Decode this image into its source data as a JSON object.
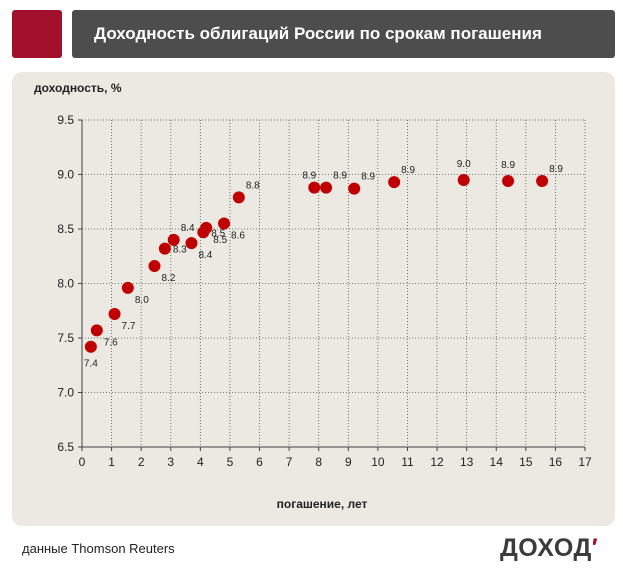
{
  "header": {
    "title": "Доходность облигаций России по срокам погашения"
  },
  "footer": {
    "source": "данные Thomson Reuters",
    "logo_text": "ДОХОД",
    "logo_accent": "′"
  },
  "colors": {
    "brand_red": "#a3102b",
    "header_bg": "#4d4d4d",
    "panel_bg": "#ebe9e1",
    "marker": "#c00000",
    "grid": "#555555"
  },
  "chart_data": {
    "type": "scatter",
    "ylabel": "доходность, %",
    "xlabel": "погашение, лет",
    "xlim": [
      0,
      17
    ],
    "ylim": [
      6.5,
      9.5
    ],
    "x_ticks": [
      0,
      1,
      2,
      3,
      4,
      5,
      6,
      7,
      8,
      9,
      10,
      11,
      12,
      13,
      14,
      15,
      16,
      17
    ],
    "y_ticks": [
      "6.5",
      "7.0",
      "7.5",
      "8.0",
      "8.5",
      "9.0",
      "9.5"
    ],
    "grid": "dotted",
    "points": [
      {
        "x": 0.3,
        "y": 7.42,
        "label": "7.4",
        "label_pos": "below"
      },
      {
        "x": 0.5,
        "y": 7.57,
        "label": "7.6",
        "label_pos": "below-right"
      },
      {
        "x": 1.1,
        "y": 7.72,
        "label": "7.7",
        "label_pos": "below-right"
      },
      {
        "x": 1.55,
        "y": 7.96,
        "label": "8.0",
        "label_pos": "below-right"
      },
      {
        "x": 2.45,
        "y": 8.16,
        "label": "8.2",
        "label_pos": "below-right"
      },
      {
        "x": 2.8,
        "y": 8.32,
        "label": "8.3",
        "label_pos": "right"
      },
      {
        "x": 3.1,
        "y": 8.4,
        "label": "8.4",
        "label_pos": "upper-right"
      },
      {
        "x": 3.7,
        "y": 8.37,
        "label": "8.4",
        "label_pos": "below-right"
      },
      {
        "x": 4.1,
        "y": 8.47,
        "label": "8.5",
        "label_pos": "right"
      },
      {
        "x": 4.2,
        "y": 8.51,
        "label": "8.5",
        "label_pos": "below-right"
      },
      {
        "x": 4.8,
        "y": 8.55,
        "label": "8.6",
        "label_pos": "below-right"
      },
      {
        "x": 5.3,
        "y": 8.79,
        "label": "8.8",
        "label_pos": "upper-right"
      },
      {
        "x": 7.85,
        "y": 8.88,
        "label": "8.9",
        "label_pos": "above-left"
      },
      {
        "x": 8.25,
        "y": 8.88,
        "label": "8.9",
        "label_pos": "upper-right"
      },
      {
        "x": 9.2,
        "y": 8.87,
        "label": "8.9",
        "label_pos": "upper-right"
      },
      {
        "x": 10.55,
        "y": 8.93,
        "label": "8.9",
        "label_pos": "upper-right"
      },
      {
        "x": 12.9,
        "y": 8.95,
        "label": "9.0",
        "label_pos": "above"
      },
      {
        "x": 14.4,
        "y": 8.94,
        "label": "8.9",
        "label_pos": "above"
      },
      {
        "x": 15.55,
        "y": 8.94,
        "label": "8.9",
        "label_pos": "upper-right"
      }
    ]
  }
}
